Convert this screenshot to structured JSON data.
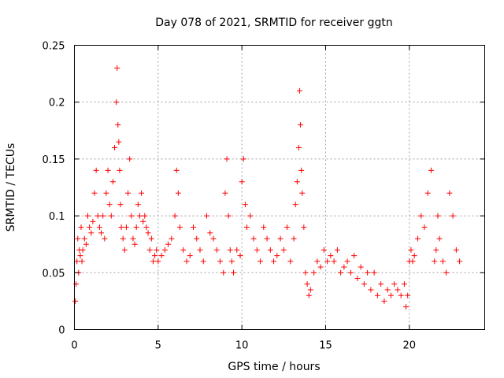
{
  "chart_data": {
    "type": "scatter",
    "title": "Day 078 of 2021, SRMTID for receiver ggtn",
    "xlabel": "GPS time / hours",
    "ylabel": "SRMTID / TECUs",
    "xlim": [
      0,
      24.5
    ],
    "ylim": [
      0,
      0.25
    ],
    "xticks": [
      0,
      5,
      10,
      15,
      20
    ],
    "xtick_labels": [
      "0",
      "5",
      "10",
      "15",
      "20"
    ],
    "yticks": [
      0,
      0.05,
      0.1,
      0.15,
      0.2,
      0.25
    ],
    "ytick_labels": [
      "0",
      "0.05",
      "0.1",
      "0.15",
      "0.2",
      "0.25"
    ],
    "grid": true,
    "marker": "+",
    "color": "#ff0000",
    "series": [
      {
        "name": "SRMTID",
        "x": [
          0.05,
          0.1,
          0.15,
          0.2,
          0.25,
          0.3,
          0.35,
          0.4,
          0.45,
          0.5,
          0.6,
          0.7,
          0.8,
          0.9,
          1.0,
          1.1,
          1.2,
          1.3,
          1.4,
          1.5,
          1.6,
          1.7,
          1.8,
          1.9,
          2.0,
          2.1,
          2.2,
          2.3,
          2.4,
          2.5,
          2.55,
          2.6,
          2.65,
          2.7,
          2.75,
          2.8,
          2.9,
          3.0,
          3.1,
          3.2,
          3.3,
          3.4,
          3.5,
          3.6,
          3.7,
          3.8,
          3.9,
          4.0,
          4.1,
          4.2,
          4.3,
          4.4,
          4.5,
          4.6,
          4.7,
          4.8,
          4.9,
          5.0,
          5.2,
          5.4,
          5.6,
          5.8,
          6.0,
          6.1,
          6.2,
          6.3,
          6.5,
          6.7,
          6.9,
          7.1,
          7.3,
          7.5,
          7.7,
          7.9,
          8.1,
          8.3,
          8.5,
          8.7,
          8.9,
          9.0,
          9.1,
          9.2,
          9.3,
          9.4,
          9.5,
          9.7,
          9.9,
          10.0,
          10.1,
          10.2,
          10.3,
          10.5,
          10.7,
          10.9,
          11.1,
          11.3,
          11.5,
          11.7,
          11.9,
          12.1,
          12.3,
          12.5,
          12.7,
          12.9,
          13.1,
          13.2,
          13.3,
          13.4,
          13.45,
          13.5,
          13.55,
          13.6,
          13.7,
          13.8,
          13.9,
          14.0,
          14.1,
          14.3,
          14.5,
          14.7,
          14.9,
          15.1,
          15.3,
          15.5,
          15.7,
          15.9,
          16.1,
          16.3,
          16.5,
          16.7,
          16.9,
          17.1,
          17.3,
          17.5,
          17.7,
          17.9,
          18.1,
          18.3,
          18.5,
          18.7,
          18.9,
          19.1,
          19.3,
          19.5,
          19.7,
          19.8,
          19.9,
          20.0,
          20.1,
          20.2,
          20.3,
          20.5,
          20.7,
          20.9,
          21.1,
          21.3,
          21.5,
          21.6,
          21.7,
          21.8,
          22.0,
          22.2,
          22.4,
          22.6,
          22.8,
          23.0
        ],
        "y": [
          0.025,
          0.04,
          0.06,
          0.08,
          0.05,
          0.07,
          0.065,
          0.09,
          0.06,
          0.07,
          0.08,
          0.075,
          0.1,
          0.09,
          0.085,
          0.095,
          0.12,
          0.14,
          0.1,
          0.09,
          0.085,
          0.1,
          0.08,
          0.12,
          0.14,
          0.11,
          0.1,
          0.13,
          0.16,
          0.2,
          0.23,
          0.18,
          0.165,
          0.14,
          0.11,
          0.09,
          0.08,
          0.07,
          0.09,
          0.12,
          0.15,
          0.1,
          0.08,
          0.075,
          0.09,
          0.11,
          0.1,
          0.12,
          0.095,
          0.1,
          0.09,
          0.085,
          0.07,
          0.08,
          0.06,
          0.065,
          0.07,
          0.06,
          0.065,
          0.07,
          0.075,
          0.08,
          0.1,
          0.14,
          0.12,
          0.09,
          0.07,
          0.06,
          0.065,
          0.09,
          0.08,
          0.07,
          0.06,
          0.1,
          0.085,
          0.08,
          0.07,
          0.06,
          0.05,
          0.12,
          0.15,
          0.1,
          0.07,
          0.06,
          0.05,
          0.07,
          0.065,
          0.13,
          0.15,
          0.11,
          0.09,
          0.1,
          0.08,
          0.07,
          0.06,
          0.09,
          0.08,
          0.07,
          0.06,
          0.065,
          0.08,
          0.07,
          0.09,
          0.06,
          0.08,
          0.11,
          0.13,
          0.16,
          0.21,
          0.18,
          0.14,
          0.12,
          0.09,
          0.05,
          0.04,
          0.03,
          0.035,
          0.05,
          0.06,
          0.055,
          0.07,
          0.06,
          0.065,
          0.06,
          0.07,
          0.05,
          0.055,
          0.06,
          0.05,
          0.065,
          0.045,
          0.055,
          0.04,
          0.05,
          0.035,
          0.05,
          0.03,
          0.04,
          0.025,
          0.035,
          0.03,
          0.04,
          0.035,
          0.03,
          0.04,
          0.02,
          0.03,
          0.06,
          0.07,
          0.06,
          0.065,
          0.08,
          0.1,
          0.09,
          0.12,
          0.14,
          0.06,
          0.07,
          0.1,
          0.08,
          0.06,
          0.05,
          0.12,
          0.1,
          0.07,
          0.06
        ]
      }
    ]
  }
}
